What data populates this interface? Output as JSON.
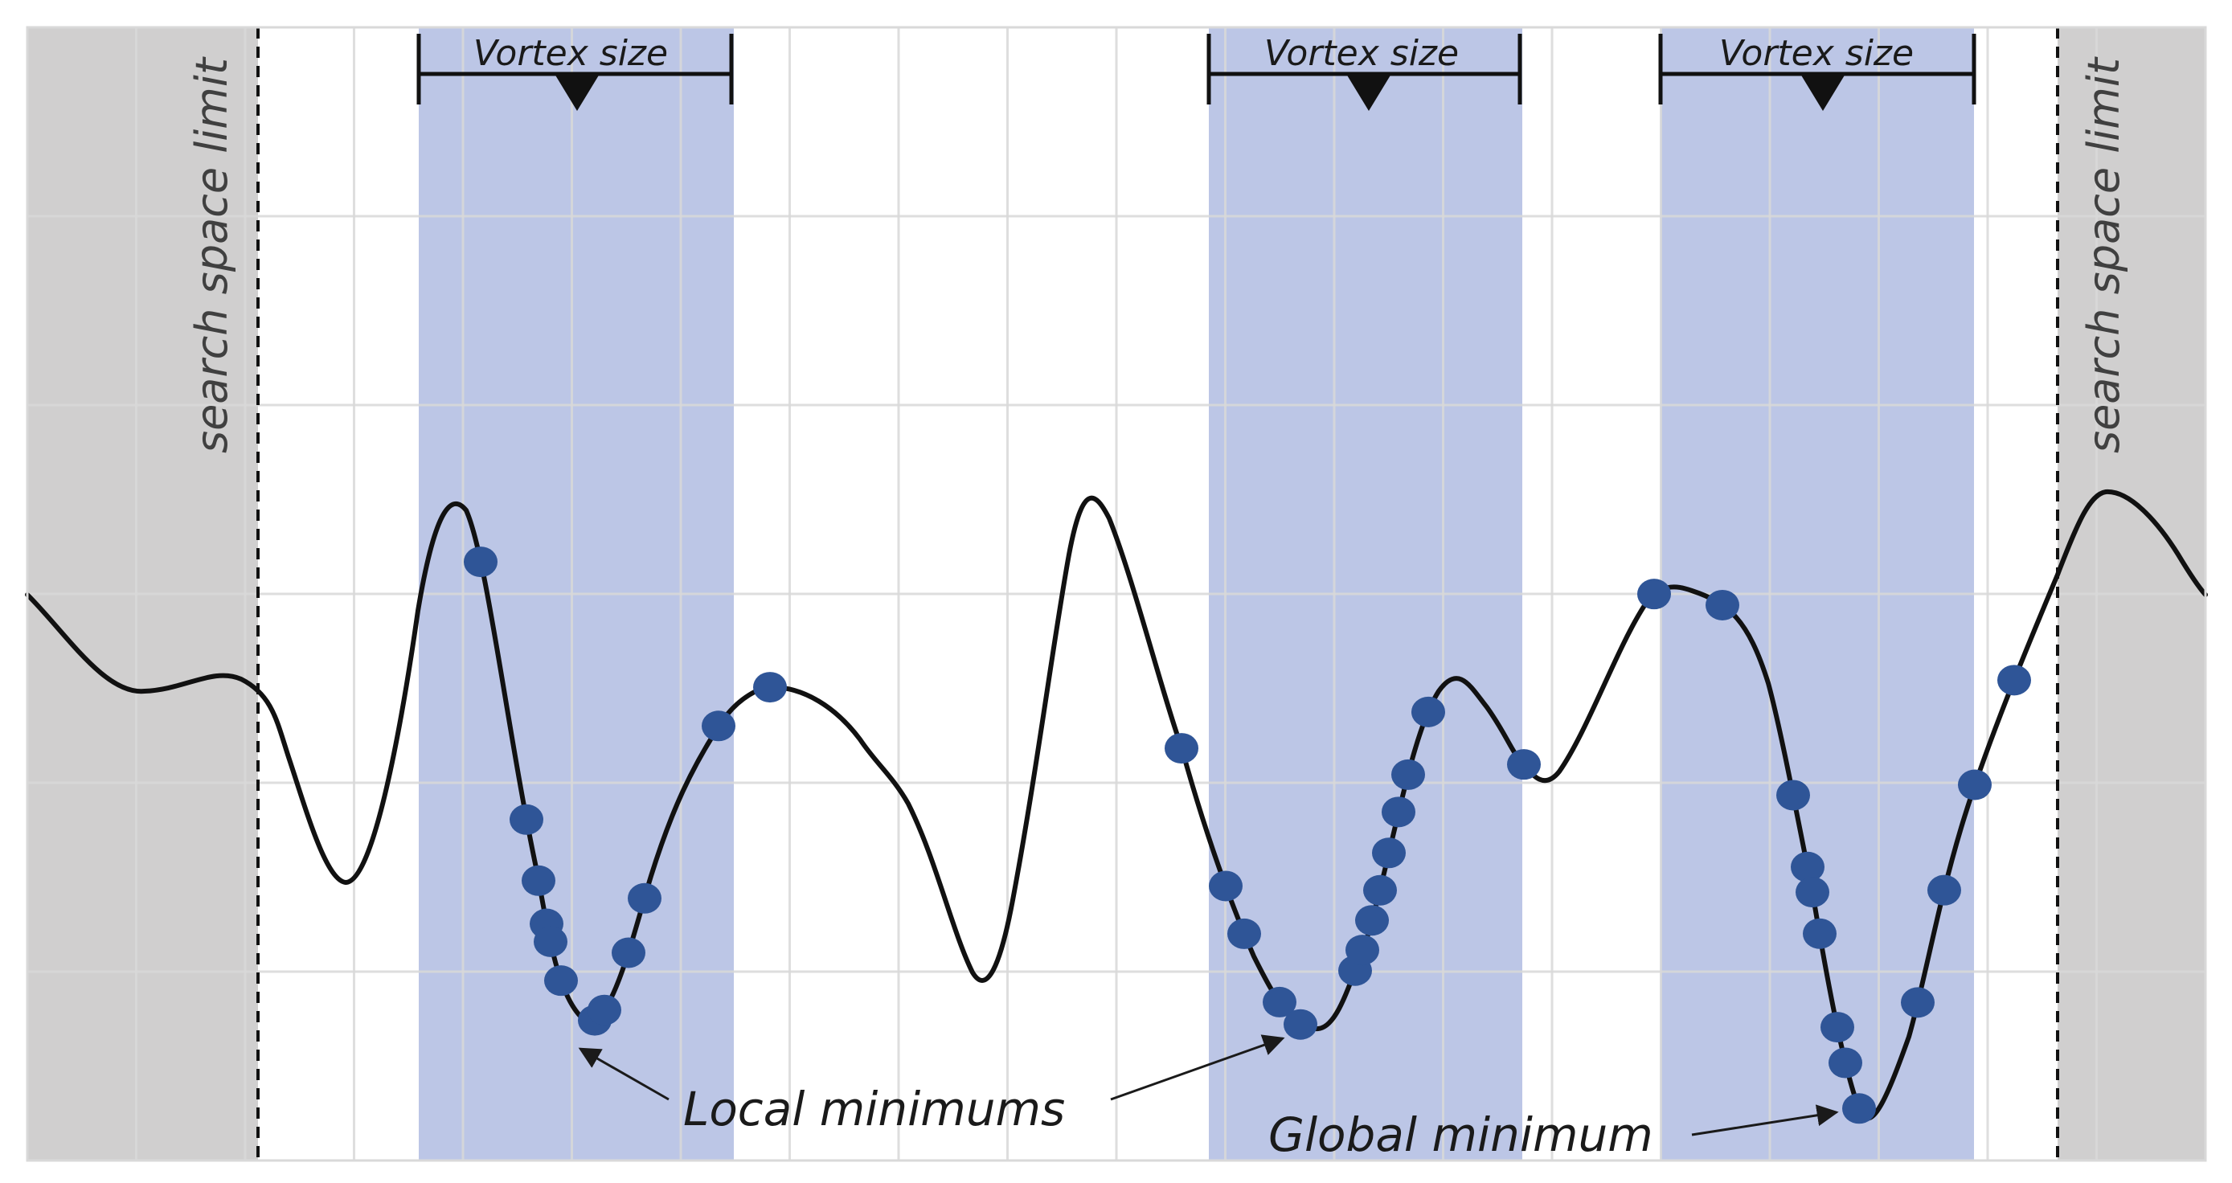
{
  "colors": {
    "grid": "#d9d9d9",
    "grey_zone": "#d0cfcf",
    "vortex_zone": "#bcc6e6",
    "curve": "#111111",
    "points": "#2f5597",
    "text": "#1a1a1a"
  },
  "search_limit": {
    "left_label": "search space limit",
    "right_label": "search space limit"
  },
  "vortex_label": "Vortex size",
  "annotations": {
    "local": "Local minimums",
    "global": "Global minimum"
  },
  "grid": {
    "columns": 20,
    "rows": 6,
    "visible": true
  }
}
